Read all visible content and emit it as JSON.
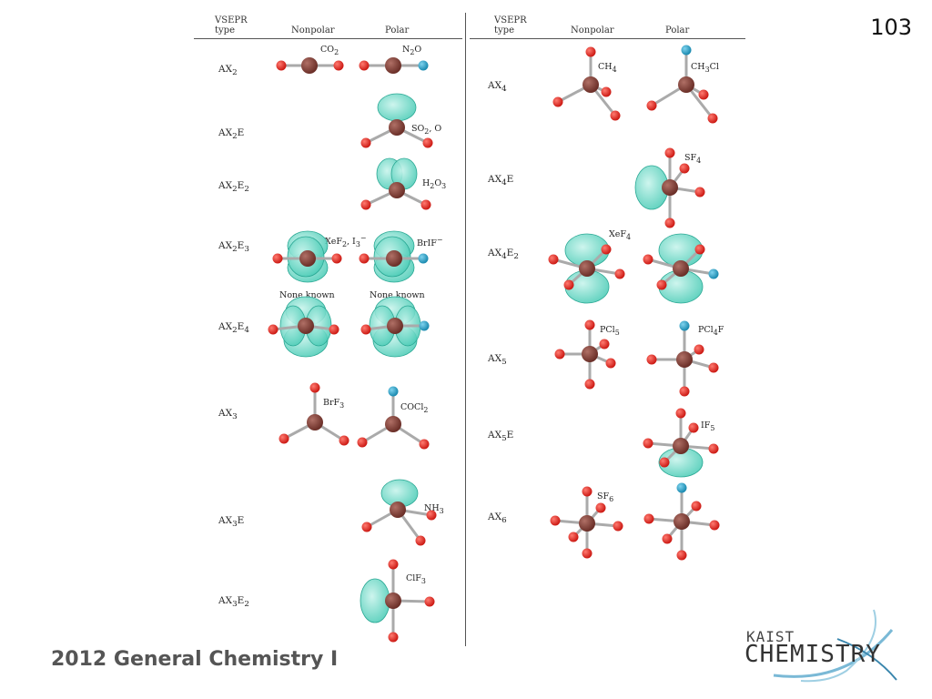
{
  "page_number": "103",
  "footer": {
    "course": "2012 General Chemistry I"
  },
  "logo": {
    "line1": "KAIST",
    "line2": "CHEMISTRY"
  },
  "headers": {
    "type_top": "VSEPR",
    "type_bottom": "type",
    "nonpolar": "Nonpolar",
    "polar": "Polar"
  },
  "left_rows": [
    {
      "type": "AX2",
      "nonpolar_label": "CO2",
      "polar_label": "N2O"
    },
    {
      "type": "AX2E",
      "nonpolar_label": "",
      "polar_label": "SO2, O"
    },
    {
      "type": "AX2E2",
      "nonpolar_label": "",
      "polar_label": "H2O3"
    },
    {
      "type": "AX2E3",
      "nonpolar_label": "XeF2, I3−",
      "polar_label": "BrIF−"
    },
    {
      "type": "AX2E4",
      "nonpolar_label": "None known",
      "polar_label": "None known"
    },
    {
      "type": "AX3",
      "nonpolar_label": "BrF3",
      "polar_label": "COCl2"
    },
    {
      "type": "AX3E",
      "nonpolar_label": "",
      "polar_label": "NH3"
    },
    {
      "type": "AX3E2",
      "nonpolar_label": "",
      "polar_label": "ClF3"
    }
  ],
  "right_rows": [
    {
      "type": "AX4",
      "nonpolar_label": "CH4",
      "polar_label": "CH3Cl"
    },
    {
      "type": "AX4E",
      "nonpolar_label": "",
      "polar_label": "SF4"
    },
    {
      "type": "AX4E2",
      "nonpolar_label": "XeF4",
      "polar_label": ""
    },
    {
      "type": "AX5",
      "nonpolar_label": "PCl5",
      "polar_label": "PCl4F"
    },
    {
      "type": "AX5E",
      "nonpolar_label": "",
      "polar_label": "IF5"
    },
    {
      "type": "AX6",
      "nonpolar_label": "SF6",
      "polar_label": ""
    }
  ],
  "colors": {
    "central_atom": "#6b2f28",
    "ligand": "#cc1a14",
    "polar_ligand": "#1a8ab0",
    "lone_pair": "#3cc7b0",
    "bond": "#aaaaaa"
  }
}
